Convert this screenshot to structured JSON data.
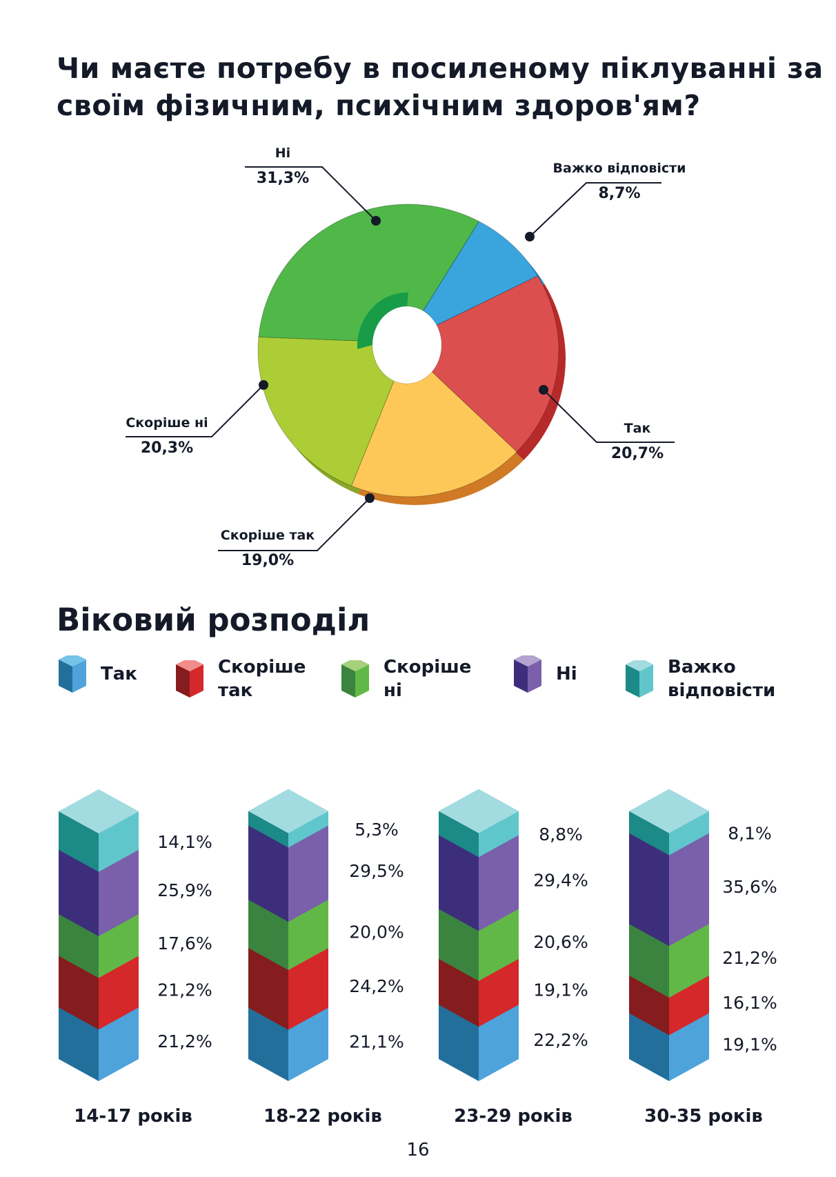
{
  "title": "Чи маєте потребу в посиленому піклуванні за своїм фізичним, психічним здоров'ям?",
  "chart_data": [
    {
      "type": "pie",
      "style": "3d-donut",
      "categories": [
        "Важко відповісти",
        "Так",
        "Скоріше так",
        "Скоріше ні",
        "Ні"
      ],
      "values": [
        8.7,
        20.7,
        19.0,
        20.3,
        31.3
      ],
      "labels": [
        "8,7%",
        "20,7%",
        "19,0%",
        "20,3%",
        "31,3%"
      ],
      "colors": [
        "#3aa5dd",
        "#db504f",
        "#fdc857",
        "#adcd36",
        "#50b749"
      ]
    },
    {
      "type": "bar",
      "stacked": true,
      "title": "Віковий розподіл",
      "categories": [
        "14-17 років",
        "18-22 років",
        "23-29 років",
        "30-35 років"
      ],
      "legend_position": "top",
      "series": [
        {
          "name": "Так",
          "values": [
            21.2,
            21.1,
            22.2,
            19.1
          ],
          "labels": [
            "21,2%",
            "21,1%",
            "22,2%",
            "19,1%"
          ],
          "colors": [
            "#236f9c",
            "#4ea3db",
            "#74c4e8"
          ]
        },
        {
          "name": "Скоріше так",
          "values": [
            21.2,
            24.2,
            19.1,
            16.1
          ],
          "labels": [
            "21,2%",
            "24,2%",
            "19,1%",
            "16,1%"
          ],
          "colors": [
            "#851c1e",
            "#d4282a",
            "#f08d8b"
          ]
        },
        {
          "name": "Скоріше ні",
          "values": [
            17.6,
            20.0,
            20.6,
            21.2
          ],
          "labels": [
            "17,6%",
            "20,0%",
            "20,6%",
            "21,2%"
          ],
          "colors": [
            "#3a8440",
            "#62b847",
            "#a6d17a"
          ]
        },
        {
          "name": "Ні",
          "values": [
            25.9,
            29.5,
            29.4,
            35.6
          ],
          "labels": [
            "25,9%",
            "29,5%",
            "29,4%",
            "35,6%"
          ],
          "colors": [
            "#3d2e7c",
            "#7a60ab",
            "#b2a3d0"
          ]
        },
        {
          "name": "Важко відповісти",
          "values": [
            14.1,
            5.3,
            8.8,
            8.1
          ],
          "labels": [
            "14,1%",
            "5,3%",
            "8,8%",
            "8,1%"
          ],
          "colors": [
            "#1c8a87",
            "#5fc6cc",
            "#a2dbe0"
          ]
        }
      ]
    }
  ],
  "legend": [
    "Так",
    "Скоріше так",
    "Скоріше ні",
    "Ні",
    "Важко відповісти"
  ],
  "page_number": "16"
}
